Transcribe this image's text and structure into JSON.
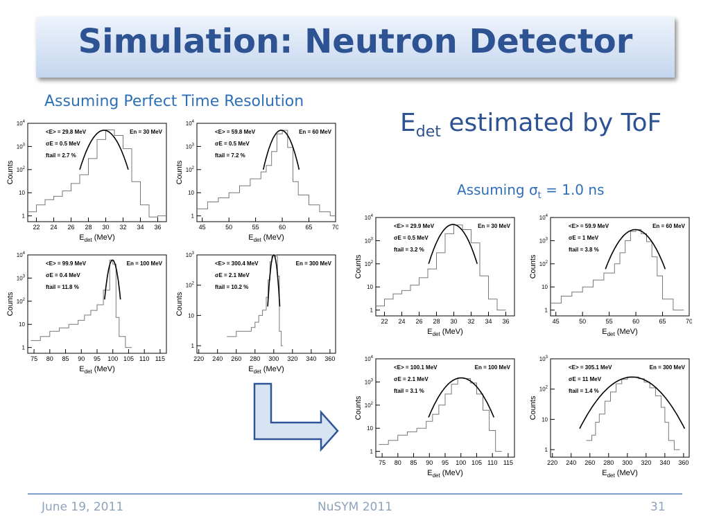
{
  "slide": {
    "title": "Simulation: Neutron Detector",
    "left_caption": "Assuming Perfect Time Resolution",
    "edet_heading": {
      "main": "E",
      "sub": "det",
      "rest": " estimated by ToF"
    },
    "right_caption": {
      "pre": "Assuming σ",
      "sub": "t",
      "post": " = 1.0 ns"
    },
    "footer": {
      "date": "June 19, 2011",
      "conference": "NuSYM 2011",
      "page": "31"
    }
  },
  "chart_data": [
    {
      "id": "p1",
      "type": "line",
      "group": "perfect",
      "xlim": [
        21,
        37
      ],
      "xticks": [
        "22",
        "24",
        "26",
        "28",
        "30",
        "32",
        "34",
        "36"
      ],
      "ylim_log10": [
        -0.25,
        4
      ],
      "xlabel": {
        "main": "E",
        "sub": "det",
        "post": " (MeV)"
      },
      "ylabel": "Counts",
      "stats": [
        "<E> = 29.8 MeV",
        "σE = 0.5 MeV",
        "ftail = 2.7 %"
      ],
      "beam": "En = 30 MeV",
      "peak": {
        "mean": 29.8,
        "sigma": 1.0,
        "amp": 5000
      },
      "hist": [
        [
          21,
          1.5
        ],
        [
          22,
          3
        ],
        [
          23,
          5
        ],
        [
          24,
          7
        ],
        [
          25,
          12
        ],
        [
          26,
          25
        ],
        [
          27,
          60
        ],
        [
          28,
          300
        ],
        [
          29,
          2000
        ],
        [
          30,
          5200
        ],
        [
          31,
          3000
        ],
        [
          32,
          800
        ],
        [
          33,
          30
        ],
        [
          34,
          3
        ],
        [
          35,
          0.9
        ],
        [
          36,
          1
        ]
      ]
    },
    {
      "id": "p2",
      "type": "line",
      "group": "perfect",
      "xlim": [
        44,
        70
      ],
      "xticks": [
        "45",
        "50",
        "55",
        "60",
        "65",
        "70"
      ],
      "ylim_log10": [
        -0.25,
        4
      ],
      "xlabel": {
        "main": "E",
        "sub": "det",
        "post": " (MeV)"
      },
      "ylabel": "Counts",
      "stats": [
        "<E> = 59.8 MeV",
        "σE = 0.5 MeV",
        "ftail = 7.2 %"
      ],
      "beam": "En = 60 MeV",
      "peak": {
        "mean": 59.8,
        "sigma": 1.2,
        "amp": 5000
      },
      "hist": [
        [
          44,
          2
        ],
        [
          46,
          4
        ],
        [
          48,
          6
        ],
        [
          50,
          10
        ],
        [
          52,
          20
        ],
        [
          54,
          40
        ],
        [
          56,
          80
        ],
        [
          57,
          150
        ],
        [
          58,
          600
        ],
        [
          59,
          3500
        ],
        [
          60,
          5000
        ],
        [
          61,
          900
        ],
        [
          62,
          30
        ],
        [
          63,
          8
        ],
        [
          65,
          3
        ],
        [
          67,
          1.5
        ],
        [
          69,
          1
        ]
      ]
    },
    {
      "id": "p3",
      "type": "line",
      "group": "perfect",
      "xlim": [
        73,
        117
      ],
      "xticks": [
        "75",
        "80",
        "85",
        "90",
        "95",
        "100",
        "105",
        "110",
        "115"
      ],
      "ylim_log10": [
        -0.25,
        4
      ],
      "xlabel": {
        "main": "E",
        "sub": "det",
        "post": " (MeV)"
      },
      "ylabel": "Counts",
      "stats": [
        "<E> = 99.9 MeV",
        "σE = 0.4 MeV",
        "ftail = 11.8 %"
      ],
      "beam": "En = 100 MeV",
      "peak": {
        "mean": 99.9,
        "sigma": 0.9,
        "amp": 6000
      },
      "hist": [
        [
          74,
          2
        ],
        [
          77,
          3
        ],
        [
          80,
          5
        ],
        [
          83,
          7
        ],
        [
          86,
          10
        ],
        [
          89,
          15
        ],
        [
          91,
          25
        ],
        [
          93,
          40
        ],
        [
          95,
          70
        ],
        [
          97,
          300
        ],
        [
          99,
          6000
        ],
        [
          100,
          4000
        ],
        [
          101,
          20
        ],
        [
          102,
          3
        ],
        [
          104,
          1
        ]
      ]
    },
    {
      "id": "p4",
      "type": "line",
      "group": "perfect",
      "xlim": [
        218,
        366
      ],
      "xticks": [
        "220",
        "240",
        "260",
        "280",
        "300",
        "320",
        "340",
        "360"
      ],
      "ylim_log10": [
        -0.25,
        3
      ],
      "xlabel": {
        "main": "E",
        "sub": "det",
        "post": " (MeV)"
      },
      "ylabel": "Counts",
      "stats": [
        "<E> = 300.4 MeV",
        "σE = 2.1 MeV",
        "ftail = 10.2 %"
      ],
      "beam": "En = 300 MeV",
      "peak": {
        "mean": 300,
        "sigma": 2.3,
        "amp": 1000
      },
      "hist": [
        [
          250,
          2
        ],
        [
          260,
          3
        ],
        [
          270,
          3
        ],
        [
          276,
          4
        ],
        [
          280,
          6
        ],
        [
          284,
          10
        ],
        [
          288,
          15
        ],
        [
          292,
          40
        ],
        [
          294,
          150
        ],
        [
          296,
          600
        ],
        [
          298,
          1000
        ],
        [
          302,
          900
        ],
        [
          304,
          200
        ],
        [
          306,
          3
        ],
        [
          308,
          1
        ]
      ]
    },
    {
      "id": "p5",
      "type": "line",
      "group": "resolution",
      "xlim": [
        21,
        37
      ],
      "xticks": [
        "22",
        "24",
        "26",
        "28",
        "30",
        "32",
        "34",
        "36"
      ],
      "ylim_log10": [
        -0.25,
        4
      ],
      "xlabel": {
        "main": "E",
        "sub": "det",
        "post": " (MeV)"
      },
      "ylabel": "Counts",
      "stats": [
        "<E> = 29.9 MeV",
        "σE = 0.5 MeV",
        "ftail = 3.2 %"
      ],
      "beam": "En = 30 MeV",
      "peak": {
        "mean": 29.9,
        "sigma": 1.0,
        "amp": 5000
      },
      "hist": [
        [
          21,
          1.5
        ],
        [
          22,
          3
        ],
        [
          23,
          5
        ],
        [
          24,
          7
        ],
        [
          25,
          12
        ],
        [
          26,
          25
        ],
        [
          27,
          60
        ],
        [
          28,
          300
        ],
        [
          29,
          2000
        ],
        [
          30,
          4800
        ],
        [
          31,
          3000
        ],
        [
          32,
          800
        ],
        [
          33,
          30
        ],
        [
          34,
          3
        ],
        [
          35,
          1
        ]
      ]
    },
    {
      "id": "p6",
      "type": "line",
      "group": "resolution",
      "xlim": [
        44,
        70
      ],
      "xticks": [
        "45",
        "50",
        "55",
        "60",
        "65",
        "70"
      ],
      "ylim_log10": [
        -0.25,
        4
      ],
      "xlabel": {
        "main": "E",
        "sub": "det",
        "post": " (MeV)"
      },
      "ylabel": "Counts",
      "stats": [
        "<E> = 59.9 MeV",
        "σE = 1 MeV",
        "ftail = 3.8 %"
      ],
      "beam": "En = 60 MeV",
      "peak": {
        "mean": 59.9,
        "sigma": 2.0,
        "amp": 3000
      },
      "hist": [
        [
          44,
          2
        ],
        [
          46,
          4
        ],
        [
          48,
          6
        ],
        [
          50,
          10
        ],
        [
          52,
          20
        ],
        [
          54,
          40
        ],
        [
          56,
          100
        ],
        [
          57,
          300
        ],
        [
          58,
          1000
        ],
        [
          59,
          2500
        ],
        [
          60,
          3000
        ],
        [
          61,
          2000
        ],
        [
          62,
          900
        ],
        [
          63,
          200
        ],
        [
          64,
          30
        ],
        [
          65,
          3
        ],
        [
          67,
          1
        ]
      ]
    },
    {
      "id": "p7",
      "type": "line",
      "group": "resolution",
      "xlim": [
        73,
        117
      ],
      "xticks": [
        "75",
        "80",
        "85",
        "90",
        "95",
        "100",
        "105",
        "110",
        "115"
      ],
      "ylim_log10": [
        -0.25,
        4
      ],
      "xlabel": {
        "main": "E",
        "sub": "det",
        "post": " (MeV)"
      },
      "ylabel": "Counts",
      "stats": [
        "<E> = 100.1 MeV",
        "σE = 2.1 MeV",
        "ftail = 3.1 %"
      ],
      "beam": "En = 100 MeV",
      "peak": {
        "mean": 100.1,
        "sigma": 3.7,
        "amp": 1500
      },
      "hist": [
        [
          74,
          2
        ],
        [
          77,
          3
        ],
        [
          80,
          5
        ],
        [
          83,
          7
        ],
        [
          86,
          10
        ],
        [
          89,
          20
        ],
        [
          91,
          40
        ],
        [
          93,
          100
        ],
        [
          95,
          300
        ],
        [
          97,
          800
        ],
        [
          99,
          1500
        ],
        [
          101,
          1400
        ],
        [
          103,
          900
        ],
        [
          105,
          300
        ],
        [
          107,
          60
        ],
        [
          109,
          8
        ],
        [
          111,
          1
        ]
      ]
    },
    {
      "id": "p8",
      "type": "line",
      "group": "resolution",
      "xlim": [
        218,
        366
      ],
      "xticks": [
        "220",
        "240",
        "260",
        "280",
        "300",
        "320",
        "340",
        "360"
      ],
      "ylim_log10": [
        -0.25,
        3
      ],
      "xlabel": {
        "main": "E",
        "sub": "det",
        "post": " (MeV)"
      },
      "ylabel": "Counts",
      "stats": [
        "<E> = 305.1 MeV",
        "σE = 11 MeV",
        "ftail = 1.4 %"
      ],
      "beam": "En = 300 MeV",
      "peak": {
        "mean": 305.1,
        "sigma": 20,
        "amp": 250
      },
      "hist": [
        [
          256,
          2
        ],
        [
          262,
          3
        ],
        [
          266,
          8
        ],
        [
          270,
          15
        ],
        [
          276,
          40
        ],
        [
          282,
          80
        ],
        [
          288,
          150
        ],
        [
          294,
          210
        ],
        [
          300,
          250
        ],
        [
          306,
          250
        ],
        [
          312,
          220
        ],
        [
          318,
          170
        ],
        [
          324,
          110
        ],
        [
          330,
          60
        ],
        [
          336,
          25
        ],
        [
          340,
          8
        ],
        [
          344,
          2
        ],
        [
          350,
          1
        ]
      ]
    }
  ]
}
